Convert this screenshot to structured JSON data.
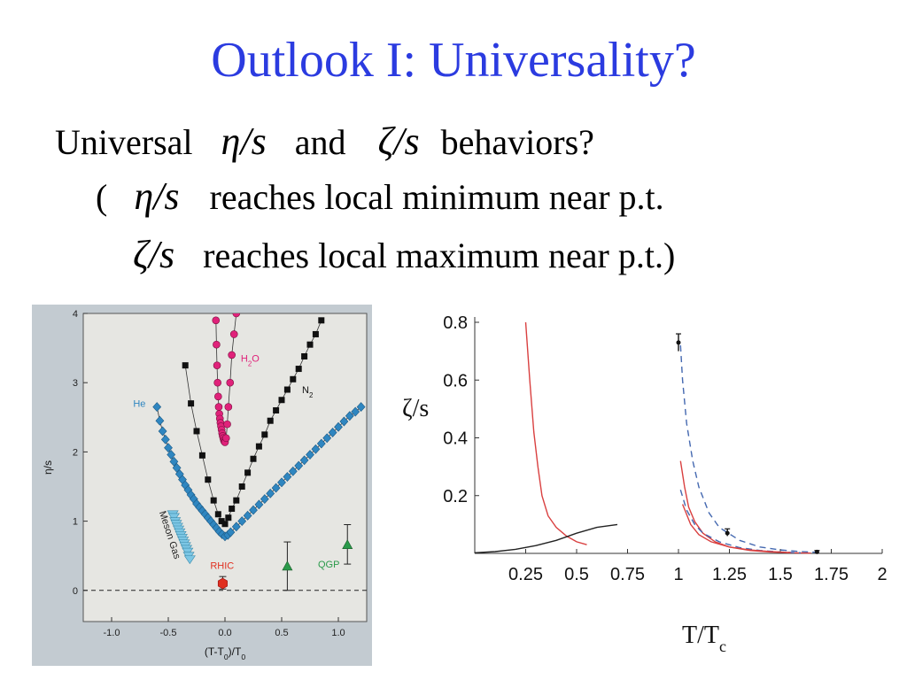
{
  "title": "Outlook I: Universality?",
  "text": {
    "line1_pre": "Universal",
    "eta_s": "η/s",
    "line1_mid": "and",
    "zeta_s": "ζ/s",
    "line1_post": "behaviors?",
    "line2_open": "(",
    "line2_post": "reaches local minimum near p.t.",
    "line3_post": "reaches local maximum near p.t.)"
  },
  "chart_data": [
    {
      "type": "scatter",
      "xlabel": "(T-T0)/T0",
      "ylabel": "η/s",
      "xlim": [
        -1.25,
        1.25
      ],
      "ylim": [
        -0.45,
        4
      ],
      "xticks": [
        "-1.0",
        "-0.5",
        "0.0",
        "0.5",
        "1.0"
      ],
      "xtick_values": [
        -1.0,
        -0.5,
        0.0,
        0.5,
        1.0
      ],
      "yticks": [
        "0",
        "1",
        "2",
        "3",
        "4"
      ],
      "ytick_values": [
        0,
        1,
        2,
        3,
        4
      ],
      "reference_line_y": 0,
      "colors": {
        "H2O": "#e0227a",
        "N2": "#111111",
        "He": "#2f86c0",
        "Meson": "#7cc6e4",
        "RHIC": "#e03020",
        "QGP": "#2a9a4a",
        "bg": "#e6e6e2",
        "frame": "#c3cbd1"
      },
      "series": [
        {
          "name": "H2O",
          "marker": "circle",
          "x": [
            -0.08,
            -0.075,
            -0.07,
            -0.065,
            -0.06,
            -0.055,
            -0.05,
            -0.045,
            -0.04,
            -0.035,
            -0.03,
            -0.025,
            -0.02,
            -0.015,
            -0.01,
            -0.005,
            0.0,
            0.01,
            0.02,
            0.03,
            0.045,
            0.06,
            0.08,
            0.1
          ],
          "y": [
            3.9,
            3.55,
            3.25,
            3.0,
            2.8,
            2.65,
            2.55,
            2.48,
            2.42,
            2.37,
            2.32,
            2.27,
            2.23,
            2.2,
            2.17,
            2.15,
            2.14,
            2.2,
            2.4,
            2.65,
            3.0,
            3.4,
            3.7,
            4.0
          ]
        },
        {
          "name": "N2",
          "marker": "square",
          "x": [
            -0.35,
            -0.3,
            -0.25,
            -0.2,
            -0.15,
            -0.1,
            -0.06,
            -0.03,
            0.0,
            0.03,
            0.06,
            0.1,
            0.15,
            0.2,
            0.25,
            0.3,
            0.35,
            0.4,
            0.45,
            0.5,
            0.55,
            0.6,
            0.65,
            0.7,
            0.75,
            0.8,
            0.85
          ],
          "y": [
            3.25,
            2.7,
            2.3,
            1.95,
            1.6,
            1.3,
            1.1,
            1.0,
            0.96,
            1.05,
            1.18,
            1.3,
            1.5,
            1.7,
            1.9,
            2.08,
            2.25,
            2.45,
            2.6,
            2.75,
            2.9,
            3.05,
            3.2,
            3.38,
            3.55,
            3.7,
            3.9
          ]
        },
        {
          "name": "He",
          "marker": "diamond",
          "x": [
            -0.6,
            -0.575,
            -0.55,
            -0.525,
            -0.5,
            -0.475,
            -0.45,
            -0.425,
            -0.4,
            -0.375,
            -0.35,
            -0.325,
            -0.3,
            -0.275,
            -0.25,
            -0.225,
            -0.2,
            -0.175,
            -0.15,
            -0.125,
            -0.1,
            -0.075,
            -0.05,
            -0.025,
            0.0,
            0.025,
            0.05,
            0.1,
            0.15,
            0.2,
            0.25,
            0.3,
            0.35,
            0.4,
            0.45,
            0.5,
            0.55,
            0.6,
            0.65,
            0.7,
            0.75,
            0.8,
            0.85,
            0.9,
            0.95,
            1.0,
            1.05,
            1.1,
            1.15,
            1.2
          ],
          "y": [
            2.65,
            2.45,
            2.3,
            2.18,
            2.06,
            1.96,
            1.86,
            1.77,
            1.68,
            1.6,
            1.52,
            1.45,
            1.38,
            1.32,
            1.25,
            1.2,
            1.15,
            1.1,
            1.05,
            1.0,
            0.95,
            0.9,
            0.85,
            0.81,
            0.78,
            0.8,
            0.84,
            0.92,
            1.0,
            1.08,
            1.16,
            1.24,
            1.32,
            1.4,
            1.48,
            1.56,
            1.64,
            1.72,
            1.8,
            1.88,
            1.96,
            2.04,
            2.12,
            2.2,
            2.28,
            2.36,
            2.44,
            2.52,
            2.58,
            2.65
          ]
        },
        {
          "name": "Meson Gas",
          "marker": "triangle-down",
          "x": [
            -0.46,
            -0.45,
            -0.44,
            -0.43,
            -0.42,
            -0.41,
            -0.4,
            -0.39,
            -0.38,
            -0.37,
            -0.36,
            -0.35,
            -0.34,
            -0.33,
            -0.32,
            -0.31
          ],
          "y": [
            1.1,
            1.06,
            1.0,
            0.96,
            0.92,
            0.88,
            0.84,
            0.8,
            0.76,
            0.72,
            0.68,
            0.64,
            0.6,
            0.56,
            0.5,
            0.45
          ]
        },
        {
          "name": "RHIC",
          "marker": "hexagon",
          "x": [
            -0.02
          ],
          "y": [
            0.1
          ],
          "err_low": [
            0.02
          ],
          "err_high": [
            0.2
          ]
        },
        {
          "name": "QGP",
          "marker": "triangle-up",
          "x": [
            0.55,
            1.08
          ],
          "y": [
            0.35,
            0.66
          ],
          "err_low": [
            0.0,
            0.38
          ],
          "err_high": [
            0.7,
            0.95
          ]
        }
      ],
      "labels": [
        {
          "series": "H2O",
          "text": "H2O",
          "x": 0.14,
          "y": 3.3
        },
        {
          "series": "N2",
          "text": "N2",
          "x": 0.68,
          "y": 2.85
        },
        {
          "series": "He",
          "text": "He",
          "x": -0.81,
          "y": 2.65
        },
        {
          "series": "RHIC",
          "text": "RHIC",
          "x": -0.13,
          "y": 0.31
        },
        {
          "series": "QGP",
          "text": "QGP",
          "x": 0.82,
          "y": 0.33
        }
      ]
    },
    {
      "type": "line",
      "xlabel": "T/Tc",
      "ylabel": "ζ/s",
      "xlim": [
        0,
        2
      ],
      "ylim": [
        0,
        0.8
      ],
      "xticks": [
        "0.25",
        "0.5",
        "0.75",
        "1",
        "1.25",
        "1.5",
        "1.75",
        "2"
      ],
      "xtick_values": [
        0.25,
        0.5,
        0.75,
        1,
        1.25,
        1.5,
        1.75,
        2
      ],
      "yticks": [
        "0.2",
        "0.4",
        "0.6",
        "0.8"
      ],
      "ytick_values": [
        0.2,
        0.4,
        0.6,
        0.8
      ],
      "colors": {
        "red": "#d94040",
        "blue": "#4468b0",
        "black": "#222222"
      },
      "series": [
        {
          "style": "red-solid",
          "x": [
            0.25,
            0.27,
            0.29,
            0.31,
            0.33,
            0.36,
            0.4,
            0.45,
            0.5,
            0.55
          ],
          "y": [
            0.8,
            0.6,
            0.42,
            0.3,
            0.2,
            0.13,
            0.09,
            0.06,
            0.04,
            0.03
          ]
        },
        {
          "style": "black-solid",
          "x": [
            0.0,
            0.1,
            0.2,
            0.3,
            0.4,
            0.5,
            0.6,
            0.7
          ],
          "y": [
            0.002,
            0.006,
            0.014,
            0.027,
            0.045,
            0.07,
            0.09,
            0.1
          ]
        },
        {
          "style": "blue-dashed",
          "x": [
            1.01,
            1.02,
            1.04,
            1.07,
            1.1,
            1.15,
            1.2,
            1.3,
            1.4,
            1.5,
            1.6,
            1.7
          ],
          "y": [
            0.72,
            0.6,
            0.45,
            0.32,
            0.23,
            0.14,
            0.09,
            0.045,
            0.022,
            0.012,
            0.006,
            0.003
          ]
        },
        {
          "style": "red-solid",
          "x": [
            1.01,
            1.03,
            1.05,
            1.08,
            1.12,
            1.18,
            1.25,
            1.35,
            1.45,
            1.55,
            1.65
          ],
          "y": [
            0.32,
            0.23,
            0.16,
            0.11,
            0.07,
            0.04,
            0.022,
            0.01,
            0.005,
            0.002,
            0.001
          ]
        },
        {
          "style": "blue-dashed",
          "x": [
            1.01,
            1.04,
            1.08,
            1.12,
            1.2,
            1.3,
            1.4,
            1.5,
            1.6
          ],
          "y": [
            0.22,
            0.15,
            0.1,
            0.07,
            0.04,
            0.02,
            0.01,
            0.005,
            0.002
          ]
        },
        {
          "style": "red-solid",
          "x": [
            1.02,
            1.06,
            1.1,
            1.16,
            1.25,
            1.35,
            1.45,
            1.55
          ],
          "y": [
            0.17,
            0.1,
            0.065,
            0.04,
            0.022,
            0.012,
            0.006,
            0.003
          ]
        }
      ],
      "points": [
        {
          "x": 1.0,
          "y": 0.73,
          "err_low": 0.7,
          "err_high": 0.76
        },
        {
          "x": 1.24,
          "y": 0.07,
          "err_low": 0.06,
          "err_high": 0.085
        },
        {
          "x": 1.68,
          "y": 0.005,
          "err_low": 0.0,
          "err_high": 0.01
        }
      ]
    }
  ]
}
